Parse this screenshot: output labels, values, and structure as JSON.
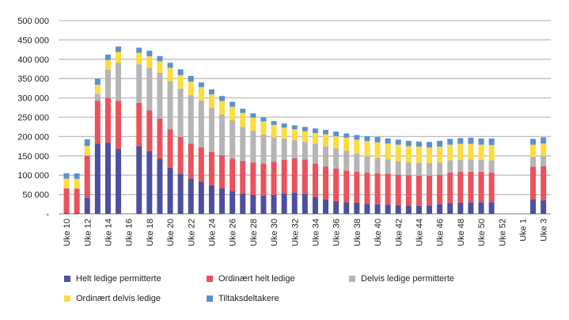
{
  "chart_data": {
    "type": "bar",
    "stacked": true,
    "title": "",
    "xlabel": "",
    "ylabel": "",
    "ylim": [
      0,
      500000
    ],
    "yticks": [
      0,
      50000,
      100000,
      150000,
      200000,
      250000,
      300000,
      350000,
      400000,
      450000,
      500000
    ],
    "ytick_labels": [
      "-",
      "50 000",
      "100 000",
      "150 000",
      "200 000",
      "250 000",
      "300 000",
      "350 000",
      "400 000",
      "450 000",
      "500 000"
    ],
    "grid": "horizontal",
    "legend_position": "bottom",
    "categories": [
      "Uke 10",
      "Uke 11",
      "Uke 12",
      "Uke 13",
      "Uke 14",
      "Uke 15",
      "Uke 16",
      "Uke 17",
      "Uke 18",
      "Uke 19",
      "Uke 20",
      "Uke 21",
      "Uke 22",
      "Uke 23",
      "Uke 24",
      "Uke 25",
      "Uke 26",
      "Uke 27",
      "Uke 28",
      "Uke 29",
      "Uke 30",
      "Uke 31",
      "Uke 32",
      "Uke 33",
      "Uke 34",
      "Uke 35",
      "Uke 36",
      "Uke 37",
      "Uke 38",
      "Uke 39",
      "Uke 40",
      "Uke 41",
      "Uke 42",
      "Uke 43",
      "Uke 44",
      "Uke 45",
      "Uke 46",
      "Uke 47",
      "Uke 48",
      "Uke 49",
      "Uke 50",
      "Uke 51",
      "Uke 52",
      "Uke 53",
      "Uke 1",
      "Uke 2",
      "Uke 3"
    ],
    "shown_tick_labels": [
      "Uke 10",
      "Uke 12",
      "Uke 14",
      "Uke 16",
      "Uke 18",
      "Uke 20",
      "Uke 22",
      "Uke 24",
      "Uke 26",
      "Uke 28",
      "Uke 30",
      "Uke 32",
      "Uke 34",
      "Uke 36",
      "Uke 38",
      "Uke 40",
      "Uke 42",
      "Uke 44",
      "Uke 46",
      "Uke 48",
      "Uke 50",
      "Uke 52",
      "Uke 1",
      "Uke 3"
    ],
    "series": [
      {
        "name": "Helt ledige permitterte",
        "color": "#4f4fa0",
        "values": [
          2000,
          2000,
          41000,
          182000,
          184000,
          168000,
          null,
          175000,
          162000,
          143000,
          119000,
          104000,
          91000,
          83000,
          74000,
          67000,
          59000,
          53000,
          49000,
          47000,
          49000,
          53000,
          55000,
          51000,
          43000,
          37000,
          33000,
          30000,
          29000,
          26000,
          25000,
          24000,
          23000,
          22000,
          21000,
          22000,
          25000,
          28000,
          29000,
          30000,
          30000,
          30000,
          null,
          null,
          null,
          37000,
          35000
        ]
      },
      {
        "name": "Ordinært helt ledige",
        "color": "#ea525c",
        "values": [
          64000,
          63000,
          109000,
          110000,
          116000,
          124000,
          null,
          112000,
          106000,
          103000,
          100000,
          95000,
          91000,
          89000,
          86000,
          85000,
          84000,
          84000,
          84000,
          83000,
          86000,
          87000,
          89000,
          90000,
          87000,
          85000,
          84000,
          82000,
          80000,
          81000,
          80000,
          80000,
          78000,
          78000,
          78000,
          77000,
          76000,
          79000,
          80000,
          79000,
          79000,
          77000,
          null,
          null,
          null,
          85000,
          88000
        ]
      },
      {
        "name": "Delvis ledige permitterte",
        "color": "#b5b5b5",
        "values": [
          1000,
          1500,
          2000,
          18000,
          73000,
          99000,
          null,
          100000,
          110000,
          119000,
          124000,
          125000,
          125000,
          121000,
          114000,
          105000,
          99000,
          88000,
          82000,
          75000,
          63000,
          55000,
          47000,
          45000,
          51000,
          52000,
          52000,
          51000,
          47000,
          42000,
          40000,
          37000,
          35000,
          33000,
          33000,
          32000,
          32000,
          32000,
          31000,
          32000,
          31000,
          32000,
          null,
          null,
          null,
          26000,
          27000
        ]
      },
      {
        "name": "Ordinært delvis ledige",
        "color": "#fcdc3e",
        "values": [
          24000,
          24000,
          24000,
          24000,
          25000,
          28000,
          null,
          30000,
          30000,
          30000,
          35000,
          35000,
          35000,
          35000,
          35000,
          35000,
          35000,
          36000,
          34000,
          34000,
          32000,
          28000,
          28000,
          28000,
          28000,
          32000,
          32000,
          34000,
          36000,
          39000,
          40000,
          41000,
          43000,
          42000,
          42000,
          41000,
          41000,
          40000,
          41000,
          40000,
          39000,
          39000,
          null,
          null,
          null,
          31000,
          32000
        ]
      },
      {
        "name": "Tiltaksdeltakere",
        "color": "#5b91d0",
        "values": [
          14000,
          14000,
          17000,
          16000,
          14000,
          14000,
          null,
          13000,
          14000,
          13000,
          13000,
          15000,
          15000,
          12000,
          13000,
          13000,
          13000,
          11000,
          11000,
          11000,
          10000,
          11000,
          10000,
          11000,
          12000,
          11000,
          12000,
          11000,
          12000,
          13000,
          14000,
          13000,
          13000,
          14000,
          13000,
          14000,
          15000,
          15000,
          15000,
          16000,
          16000,
          17000,
          null,
          null,
          null,
          15000,
          16000
        ]
      }
    ]
  }
}
